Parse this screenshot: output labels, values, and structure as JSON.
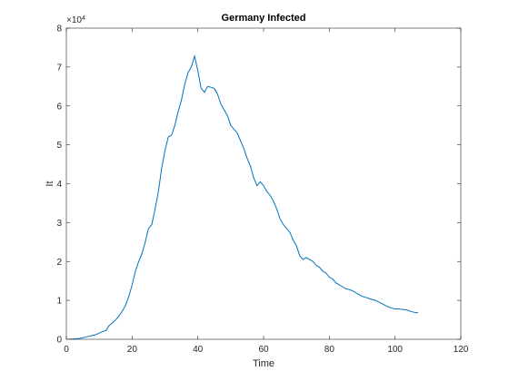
{
  "chart_data": {
    "type": "line",
    "title": "Germany Infected",
    "xlabel": "Time",
    "ylabel": "It",
    "xlim": [
      0,
      120
    ],
    "ylim": [
      0,
      80000
    ],
    "xticks": [
      0,
      20,
      40,
      60,
      80,
      100,
      120
    ],
    "ytick_labels": [
      "0",
      "1",
      "2",
      "3",
      "4",
      "5",
      "6",
      "7",
      "8"
    ],
    "y_exponent_base": "×10",
    "y_exponent_power": "4",
    "grid": false,
    "line_color": "#0072BD",
    "series": [
      {
        "x": [
          1,
          4,
          6,
          8,
          9,
          10,
          11,
          12,
          13,
          14,
          15,
          16,
          17,
          18,
          19,
          20,
          21,
          22,
          23,
          24,
          25,
          26,
          27,
          28,
          29,
          30,
          31,
          32,
          33,
          34,
          35,
          36,
          37,
          38,
          39,
          40,
          41,
          42,
          43,
          44,
          45,
          46,
          47,
          48,
          49,
          50,
          51,
          52,
          53,
          54,
          55,
          56,
          57,
          58,
          59,
          60,
          61,
          62,
          63,
          64,
          65,
          66,
          67,
          68,
          69,
          70,
          71,
          72,
          73,
          74,
          75,
          76,
          77,
          78,
          79,
          80,
          81,
          82,
          83,
          84,
          85,
          86,
          87,
          88,
          89,
          90,
          91,
          92,
          93,
          94,
          95,
          96,
          97,
          98,
          99,
          100,
          101,
          102,
          103,
          104,
          105,
          106,
          107
        ],
        "y": [
          0,
          200,
          600,
          1000,
          1200,
          1600,
          2000,
          2200,
          3500,
          4200,
          5000,
          6000,
          7200,
          8700,
          11000,
          14000,
          17500,
          20000,
          22000,
          25000,
          28500,
          29500,
          33500,
          38000,
          44000,
          48500,
          52000,
          52500,
          55000,
          58500,
          61500,
          65500,
          68500,
          70000,
          72800,
          69000,
          64500,
          63500,
          65000,
          64800,
          64500,
          63000,
          60500,
          59000,
          57500,
          55000,
          54000,
          53000,
          51000,
          49000,
          46500,
          44500,
          41500,
          39500,
          40500,
          39500,
          38000,
          37000,
          35500,
          33500,
          31000,
          29500,
          28500,
          27500,
          25500,
          24000,
          21500,
          20500,
          21000,
          20500,
          20000,
          19000,
          18500,
          17500,
          17000,
          16000,
          15500,
          14500,
          14000,
          13500,
          13000,
          12800,
          12500,
          12000,
          11500,
          11000,
          10800,
          10500,
          10200,
          10000,
          9600,
          9200,
          8700,
          8300,
          8000,
          7800,
          7800,
          7700,
          7600,
          7400,
          7100,
          6900,
          6800
        ]
      }
    ]
  }
}
